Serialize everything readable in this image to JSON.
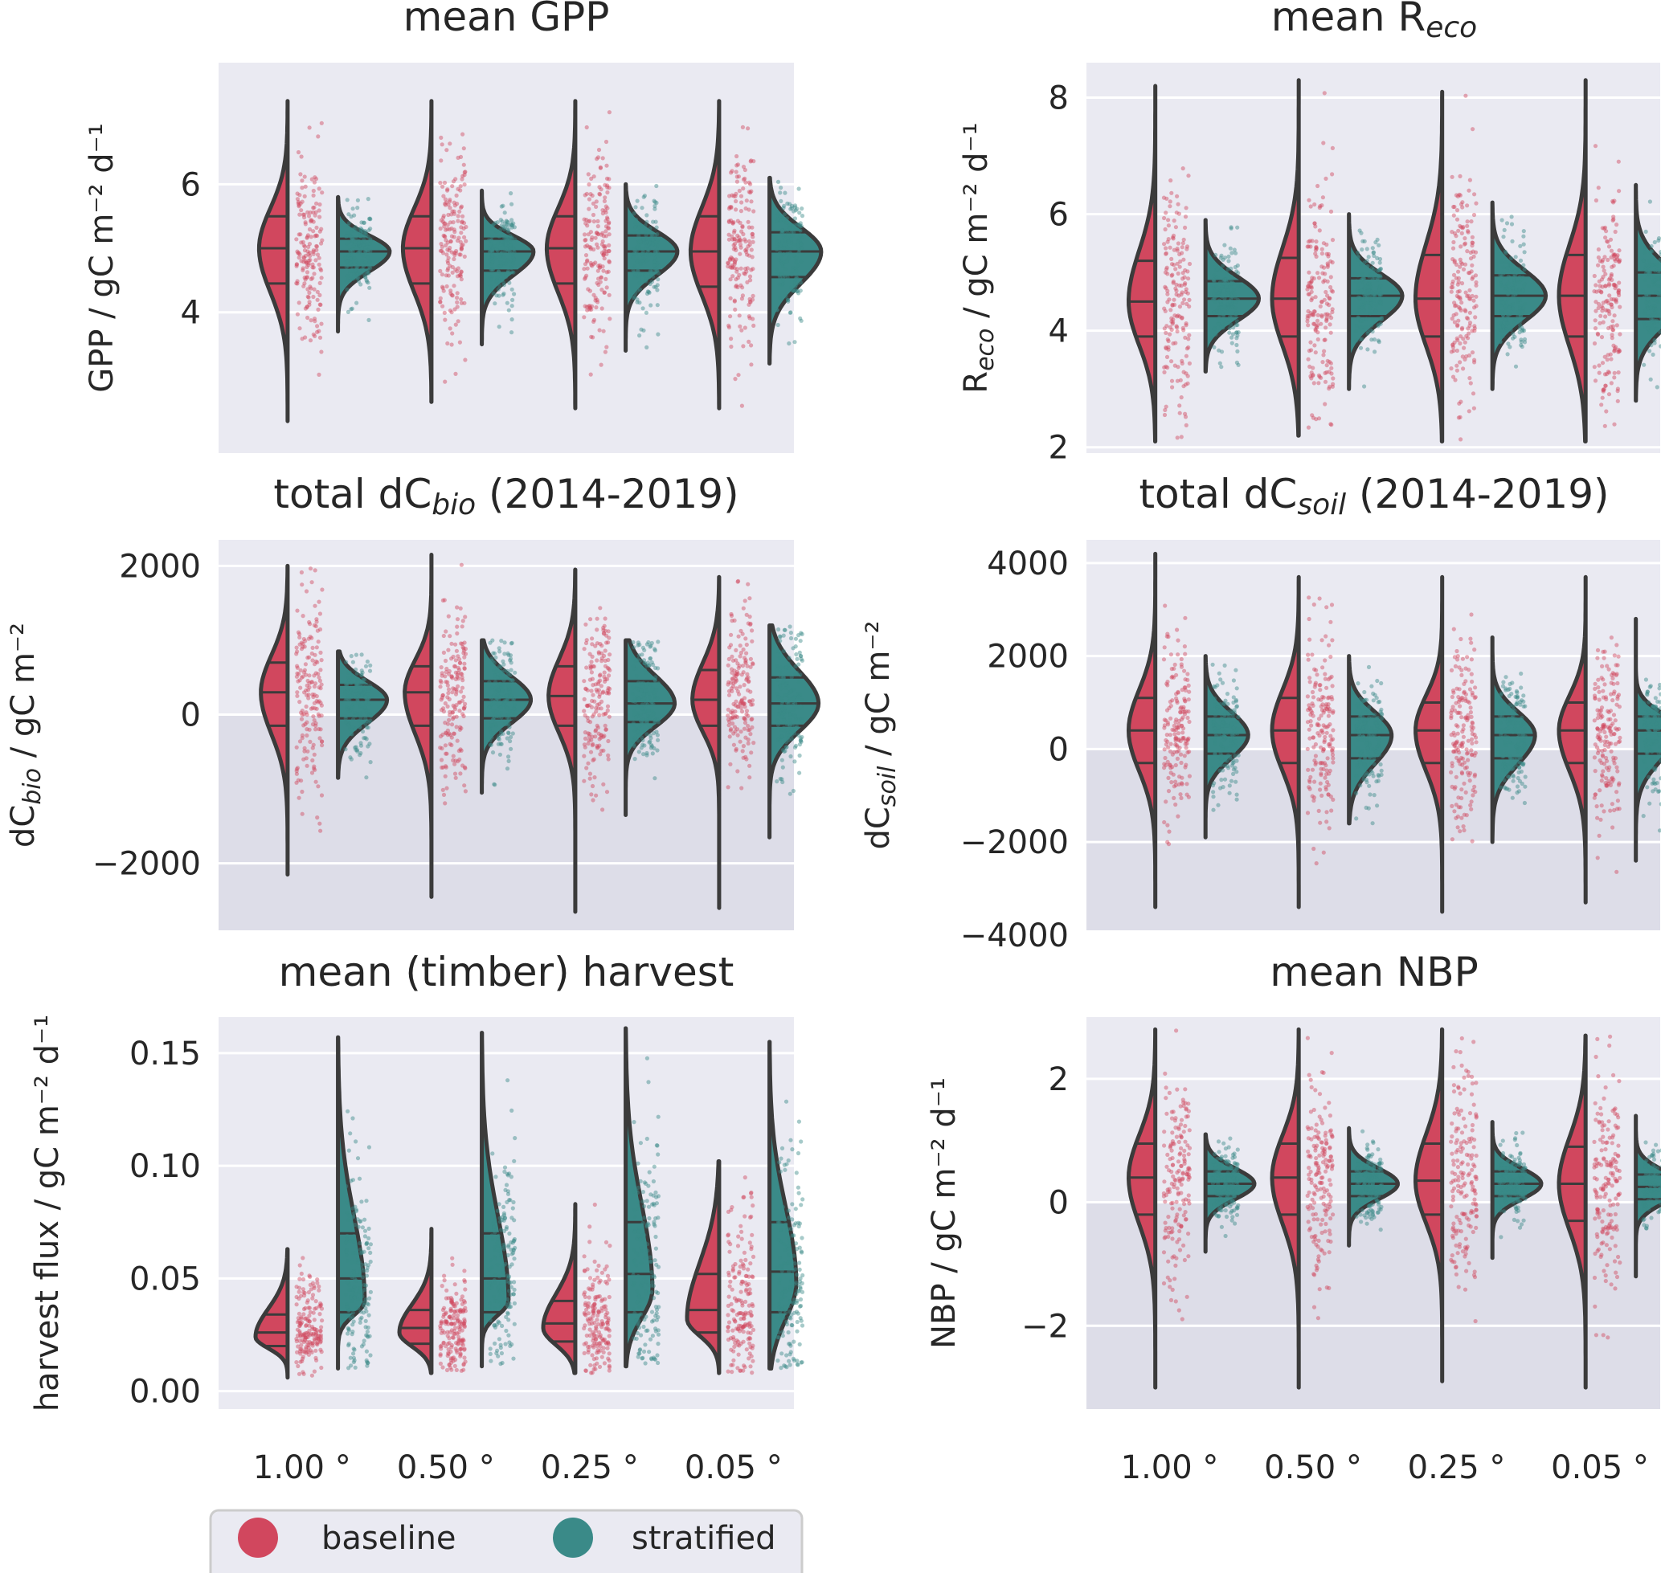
{
  "chart_data": [
    {
      "id": "gpp",
      "type": "violin",
      "title": "mean GPP",
      "ylabel": "GPP / gC m⁻² d⁻¹",
      "categories": [
        "1.00 °",
        "0.50 °",
        "0.25 °",
        "0.05 °"
      ],
      "ylim": [
        1.8,
        7.9
      ],
      "yticks": [
        4,
        6
      ],
      "ytick_labels": [
        "4",
        "6"
      ],
      "negative_shading": false,
      "show_xticks": false,
      "series": [
        {
          "name": "baseline",
          "side": "left",
          "color": "#d1475e",
          "min": [
            2.3,
            2.6,
            2.5,
            2.5
          ],
          "max": [
            7.3,
            7.3,
            7.3,
            7.3
          ],
          "median": [
            5.0,
            5.0,
            5.0,
            4.95
          ],
          "q1": [
            4.45,
            4.45,
            4.45,
            4.4
          ],
          "q3": [
            5.5,
            5.5,
            5.5,
            5.5
          ],
          "mode": [
            5.0,
            5.0,
            5.0,
            4.95
          ],
          "peak": 0.32
        },
        {
          "name": "stratified",
          "side": "right",
          "color": "#3a8a88",
          "min": [
            3.7,
            3.5,
            3.4,
            3.2
          ],
          "max": [
            5.8,
            5.9,
            6.0,
            6.1
          ],
          "median": [
            4.95,
            4.95,
            4.95,
            4.95
          ],
          "q1": [
            4.7,
            4.65,
            4.65,
            4.55
          ],
          "q3": [
            5.15,
            5.15,
            5.2,
            5.25
          ],
          "mode": [
            4.95,
            4.95,
            4.95,
            4.95
          ],
          "peak": 0.58
        }
      ]
    },
    {
      "id": "reco",
      "type": "violin",
      "title": "mean R",
      "title_sub": "eco",
      "ylabel": "R",
      "ylabel_sub": "eco",
      "ylabel_rest": " / gC m⁻² d⁻¹",
      "categories": [
        "1.00 °",
        "0.50 °",
        "0.25 °",
        "0.05 °"
      ],
      "ylim": [
        1.9,
        8.6
      ],
      "yticks": [
        2,
        4,
        6,
        8
      ],
      "ytick_labels": [
        "2",
        "4",
        "6",
        "8"
      ],
      "negative_shading": false,
      "show_xticks": false,
      "series": [
        {
          "name": "baseline",
          "side": "left",
          "color": "#d1475e",
          "min": [
            2.1,
            2.2,
            2.1,
            2.1
          ],
          "max": [
            8.2,
            8.3,
            8.1,
            8.3
          ],
          "median": [
            4.5,
            4.55,
            4.55,
            4.6
          ],
          "q1": [
            3.9,
            3.9,
            3.9,
            3.9
          ],
          "q3": [
            5.2,
            5.25,
            5.3,
            5.3
          ],
          "mode": [
            4.5,
            4.55,
            4.55,
            4.6
          ],
          "peak": 0.3
        },
        {
          "name": "stratified",
          "side": "right",
          "color": "#3a8a88",
          "min": [
            3.3,
            3.0,
            3.0,
            2.8
          ],
          "max": [
            5.9,
            6.0,
            6.2,
            6.5
          ],
          "median": [
            4.55,
            4.6,
            4.6,
            4.6
          ],
          "q1": [
            4.25,
            4.25,
            4.25,
            4.2
          ],
          "q3": [
            4.85,
            4.9,
            4.95,
            5.0
          ],
          "mode": [
            4.55,
            4.6,
            4.6,
            4.6
          ],
          "peak": 0.6
        }
      ]
    },
    {
      "id": "dcbio",
      "type": "violin",
      "title": "total dC",
      "title_sub": "bio",
      "title_rest": " (2014-2019)",
      "ylabel": "dC",
      "ylabel_sub": "bio",
      "ylabel_rest": " / gC m⁻²",
      "categories": [
        "1.00 °",
        "0.50 °",
        "0.25 °",
        "0.05 °"
      ],
      "ylim": [
        -2900,
        2350
      ],
      "yticks": [
        -2000,
        0,
        2000
      ],
      "ytick_labels": [
        "−2000",
        "0",
        "2000"
      ],
      "negative_shading": true,
      "show_xticks": false,
      "series": [
        {
          "name": "baseline",
          "side": "left",
          "color": "#d1475e",
          "min": [
            -2150,
            -2450,
            -2650,
            -2600
          ],
          "max": [
            2000,
            2150,
            1950,
            1850
          ],
          "median": [
            300,
            300,
            250,
            200
          ],
          "q1": [
            -150,
            -150,
            -150,
            -150
          ],
          "q3": [
            700,
            650,
            650,
            600
          ],
          "mode": [
            300,
            300,
            250,
            200
          ],
          "peak": 0.3
        },
        {
          "name": "stratified",
          "side": "right",
          "color": "#3a8a88",
          "min": [
            -850,
            -1050,
            -1350,
            -1650
          ],
          "max": [
            850,
            1000,
            1000,
            1200
          ],
          "median": [
            200,
            200,
            150,
            150
          ],
          "q1": [
            -50,
            -50,
            -100,
            -150
          ],
          "q3": [
            400,
            450,
            450,
            500
          ],
          "mode": [
            200,
            200,
            150,
            150
          ],
          "peak": 0.55
        }
      ]
    },
    {
      "id": "dcsoil",
      "type": "violin",
      "title": "total dC",
      "title_sub": "soil",
      "title_rest": " (2014-2019)",
      "ylabel": "dC",
      "ylabel_sub": "soil",
      "ylabel_rest": " / gC m⁻²",
      "categories": [
        "1.00 °",
        "0.50 °",
        "0.25 °",
        "0.05 °"
      ],
      "ylim": [
        -3900,
        4500
      ],
      "yticks": [
        -4000,
        -2000,
        0,
        2000,
        4000
      ],
      "ytick_labels": [
        "−4000",
        "−2000",
        "0",
        "2000",
        "4000"
      ],
      "negative_shading": true,
      "show_xticks": false,
      "series": [
        {
          "name": "baseline",
          "side": "left",
          "color": "#d1475e",
          "min": [
            -3400,
            -3400,
            -3500,
            -3300
          ],
          "max": [
            4200,
            3700,
            3700,
            3700
          ],
          "median": [
            400,
            400,
            400,
            400
          ],
          "q1": [
            -300,
            -300,
            -300,
            -300
          ],
          "q3": [
            1100,
            1100,
            1000,
            1000
          ],
          "mode": [
            400,
            400,
            400,
            400
          ],
          "peak": 0.3
        },
        {
          "name": "stratified",
          "side": "right",
          "color": "#3a8a88",
          "min": [
            -1900,
            -1600,
            -2000,
            -2400
          ],
          "max": [
            2000,
            2000,
            2400,
            2800
          ],
          "median": [
            300,
            300,
            300,
            400
          ],
          "q1": [
            -100,
            -200,
            -200,
            -100
          ],
          "q3": [
            700,
            700,
            700,
            700
          ],
          "mode": [
            300,
            300,
            300,
            400
          ],
          "peak": 0.48
        }
      ]
    },
    {
      "id": "harvest",
      "type": "violin",
      "title": "mean (timber) harvest",
      "ylabel": "harvest flux / gC m⁻² d⁻¹",
      "categories": [
        "1.00 °",
        "0.50 °",
        "0.25 °",
        "0.05 °"
      ],
      "ylim": [
        -0.008,
        0.166
      ],
      "yticks": [
        0.0,
        0.05,
        0.1,
        0.15
      ],
      "ytick_labels": [
        "0.00",
        "0.05",
        "0.10",
        "0.15"
      ],
      "negative_shading": false,
      "show_xticks": true,
      "series": [
        {
          "name": "baseline",
          "side": "left",
          "color": "#d1475e",
          "min": [
            0.006,
            0.008,
            0.008,
            0.008
          ],
          "max": [
            0.063,
            0.072,
            0.083,
            0.102
          ],
          "median": [
            0.026,
            0.028,
            0.03,
            0.036
          ],
          "q1": [
            0.02,
            0.021,
            0.022,
            0.026
          ],
          "q3": [
            0.034,
            0.036,
            0.04,
            0.052
          ],
          "mode": [
            0.024,
            0.026,
            0.028,
            0.032
          ],
          "peak": 0.36
        },
        {
          "name": "stratified",
          "side": "right",
          "color": "#3a8a88",
          "min": [
            0.01,
            0.011,
            0.011,
            0.01
          ],
          "max": [
            0.157,
            0.159,
            0.161,
            0.155
          ],
          "median": [
            0.05,
            0.05,
            0.052,
            0.053
          ],
          "q1": [
            0.035,
            0.035,
            0.035,
            0.035
          ],
          "q3": [
            0.07,
            0.07,
            0.075,
            0.075
          ],
          "mode": [
            0.04,
            0.04,
            0.045,
            0.048
          ],
          "peak": 0.3
        }
      ]
    },
    {
      "id": "nbp",
      "type": "violin",
      "title": "mean NBP",
      "ylabel": "NBP / gC m⁻² d⁻¹",
      "categories": [
        "1.00 °",
        "0.50 °",
        "0.25 °",
        "0.05 °"
      ],
      "ylim": [
        -3.35,
        3.0
      ],
      "yticks": [
        -2,
        0,
        2
      ],
      "ytick_labels": [
        "−2",
        "0",
        "2"
      ],
      "negative_shading": true,
      "show_xticks": true,
      "series": [
        {
          "name": "baseline",
          "side": "left",
          "color": "#d1475e",
          "min": [
            -3.0,
            -3.0,
            -2.9,
            -3.0
          ],
          "max": [
            2.8,
            2.8,
            2.8,
            2.7
          ],
          "median": [
            0.4,
            0.4,
            0.35,
            0.3
          ],
          "q1": [
            -0.2,
            -0.2,
            -0.2,
            -0.3
          ],
          "q3": [
            0.95,
            0.95,
            0.95,
            0.9
          ],
          "mode": [
            0.4,
            0.4,
            0.35,
            0.3
          ],
          "peak": 0.3
        },
        {
          "name": "stratified",
          "side": "right",
          "color": "#3a8a88",
          "min": [
            -0.8,
            -0.7,
            -0.9,
            -1.2
          ],
          "max": [
            1.1,
            1.2,
            1.3,
            1.4
          ],
          "median": [
            0.3,
            0.3,
            0.3,
            0.25
          ],
          "q1": [
            0.1,
            0.1,
            0.1,
            0.05
          ],
          "q3": [
            0.5,
            0.5,
            0.5,
            0.45
          ],
          "mode": [
            0.3,
            0.3,
            0.3,
            0.25
          ],
          "peak": 0.55
        }
      ]
    }
  ],
  "legend": {
    "items": [
      {
        "label": "baseline",
        "color": "#d1475e"
      },
      {
        "label": "stratified",
        "color": "#3a8a88"
      }
    ]
  },
  "style": {
    "panel_bg": "#eaeaf2",
    "negative_bg": "#dddde8",
    "grid": "#ffffff",
    "outline": "#3b3b3b"
  }
}
